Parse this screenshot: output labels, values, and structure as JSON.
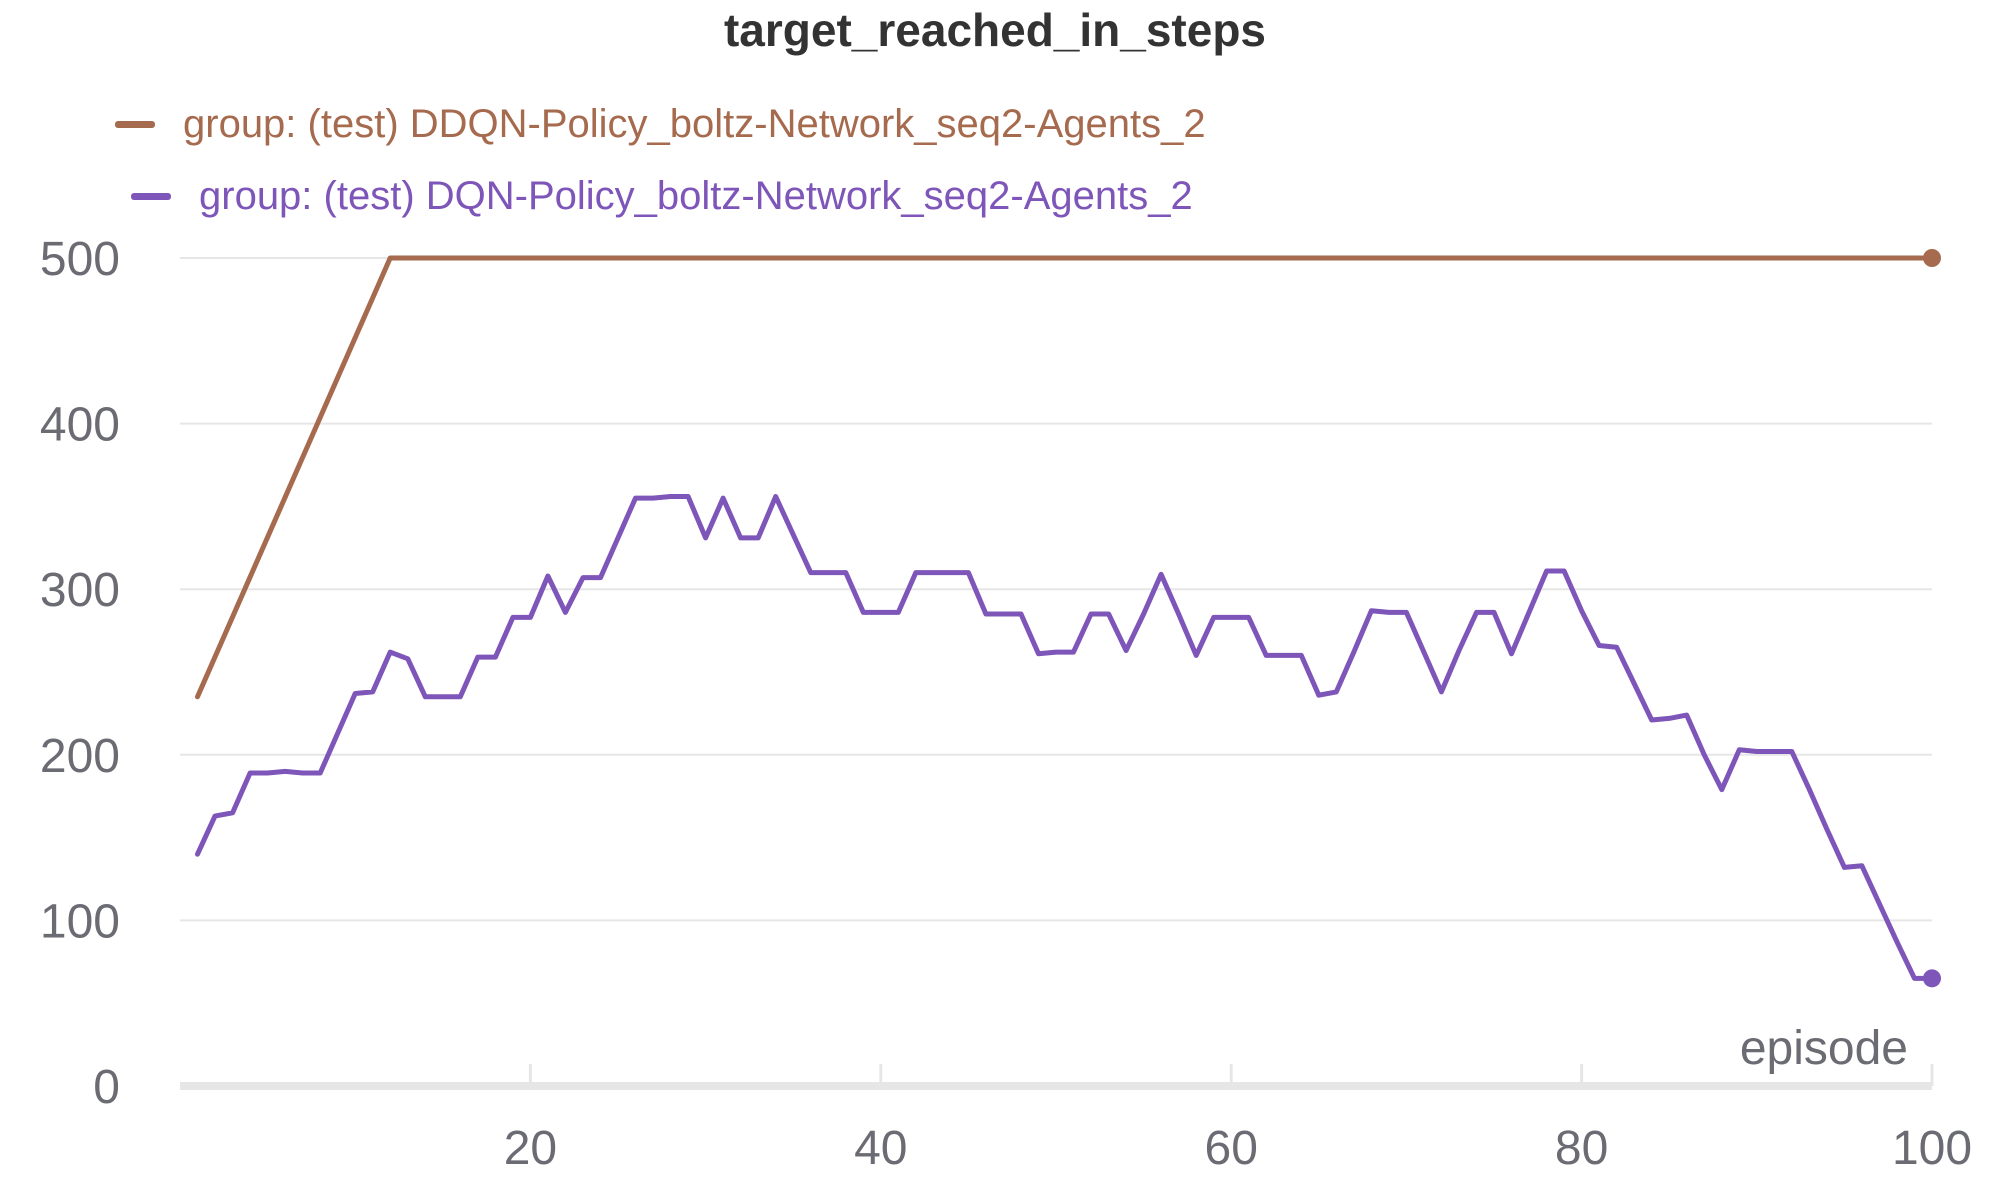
{
  "chart_data": {
    "type": "line",
    "title": "target_reached_in_steps",
    "xlabel": "episode",
    "ylabel": "",
    "xlim": [
      0,
      100
    ],
    "ylim": [
      0,
      500
    ],
    "x_ticks": [
      20,
      40,
      60,
      80,
      100
    ],
    "y_ticks": [
      0,
      100,
      200,
      300,
      400,
      500
    ],
    "grid": "horizontal",
    "legend_placement": "top-left",
    "series": [
      {
        "name": "group: (test) DDQN-Policy_boltz-Network_seq2-Agents_2",
        "color": "#a66a4e",
        "x": [
          1,
          12,
          100
        ],
        "y": [
          235,
          500,
          500
        ]
      },
      {
        "name": "group: (test) DQN-Policy_boltz-Network_seq2-Agents_2",
        "color": "#7e55b8",
        "x": [
          1,
          2,
          3,
          4,
          5,
          6,
          7,
          8,
          9,
          10,
          11,
          12,
          13,
          14,
          15,
          16,
          17,
          18,
          19,
          20,
          21,
          22,
          23,
          24,
          25,
          26,
          27,
          28,
          29,
          30,
          31,
          32,
          33,
          34,
          35,
          36,
          37,
          38,
          39,
          40,
          41,
          42,
          43,
          44,
          45,
          46,
          47,
          48,
          49,
          50,
          51,
          52,
          53,
          54,
          55,
          56,
          57,
          58,
          59,
          60,
          61,
          62,
          63,
          64,
          65,
          66,
          67,
          68,
          69,
          70,
          71,
          72,
          73,
          74,
          75,
          76,
          77,
          78,
          79,
          80,
          81,
          82,
          83,
          84,
          85,
          86,
          87,
          88,
          89,
          90,
          91,
          92,
          93,
          94,
          95,
          96,
          97,
          98,
          99,
          100
        ],
        "y": [
          140,
          163,
          165,
          189,
          189,
          190,
          189,
          189,
          213,
          237,
          238,
          262,
          258,
          235,
          235,
          235,
          259,
          259,
          283,
          283,
          308,
          286,
          307,
          307,
          331,
          355,
          355,
          356,
          356,
          331,
          355,
          331,
          331,
          356,
          333,
          310,
          310,
          310,
          286,
          286,
          286,
          310,
          310,
          310,
          310,
          285,
          285,
          285,
          261,
          262,
          262,
          285,
          285,
          263,
          285,
          309,
          285,
          260,
          283,
          283,
          283,
          260,
          260,
          260,
          236,
          238,
          262,
          287,
          286,
          286,
          262,
          238,
          263,
          286,
          286,
          261,
          286,
          311,
          311,
          287,
          266,
          265,
          243,
          221,
          222,
          224,
          200,
          179,
          203,
          202,
          202,
          202,
          179,
          155,
          132,
          133,
          110,
          87,
          65,
          65
        ]
      }
    ]
  }
}
